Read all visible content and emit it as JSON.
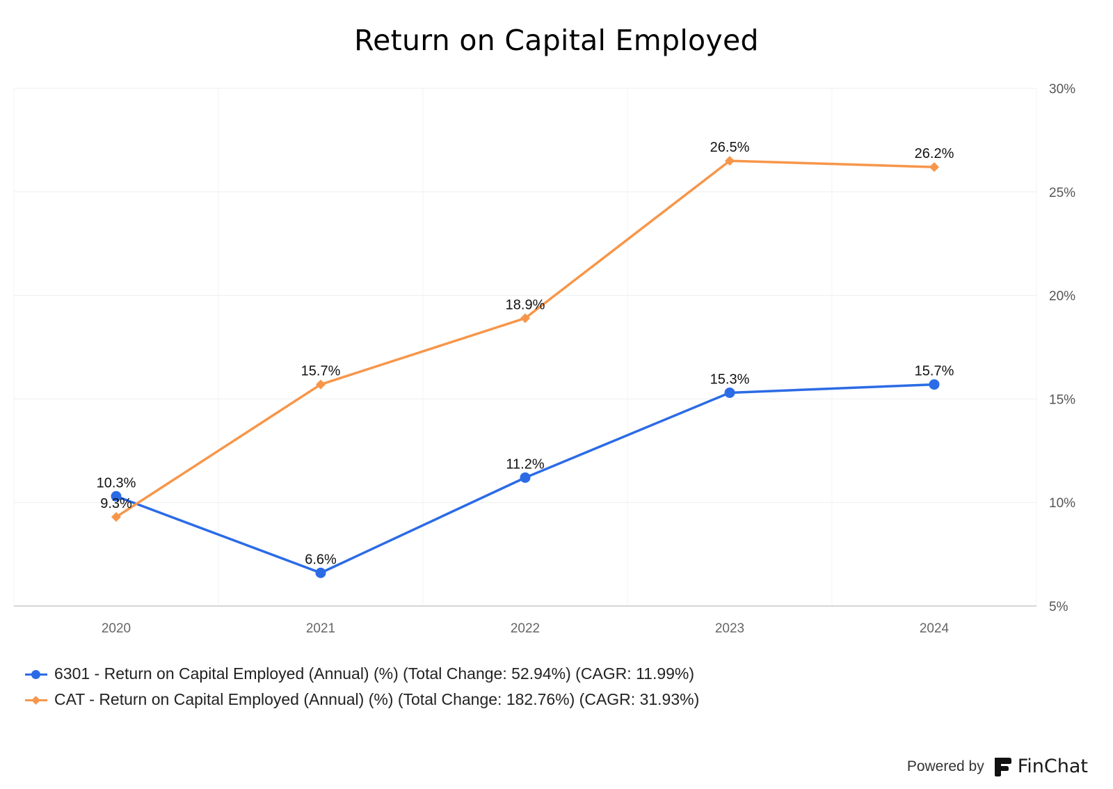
{
  "chart_data": {
    "type": "line",
    "title": "Return on Capital Employed",
    "categories": [
      "2020",
      "2021",
      "2022",
      "2023",
      "2024"
    ],
    "y_axis": {
      "min": 5,
      "max": 30,
      "position": "right",
      "ticks": [
        5,
        10,
        15,
        20,
        25,
        30
      ],
      "tick_labels": [
        "5%",
        "10%",
        "15%",
        "20%",
        "25%",
        "30%"
      ]
    },
    "grid": true,
    "legend_position": "bottom-left",
    "series": [
      {
        "name": "6301 - Return on Capital Employed (Annual) (%) (Total Change: 52.94%) (CAGR: 11.99%)",
        "color": "#2b6be6",
        "marker": "circle",
        "values": [
          10.3,
          6.6,
          11.2,
          15.3,
          15.7
        ],
        "labels": [
          "10.3%",
          "6.6%",
          "11.2%",
          "15.3%",
          "15.7%"
        ]
      },
      {
        "name": "CAT - Return on Capital Employed (Annual) (%) (Total Change: 182.76%) (CAGR: 31.93%)",
        "color": "#f7964a",
        "marker": "diamond",
        "values": [
          9.3,
          15.7,
          18.9,
          26.5,
          26.2
        ],
        "labels": [
          "9.3%",
          "15.7%",
          "18.9%",
          "26.5%",
          "26.2%"
        ]
      }
    ]
  },
  "branding": {
    "powered_label": "Powered by",
    "brand_name": "FinChat",
    "logo_icon": "finchat-logo-icon"
  }
}
